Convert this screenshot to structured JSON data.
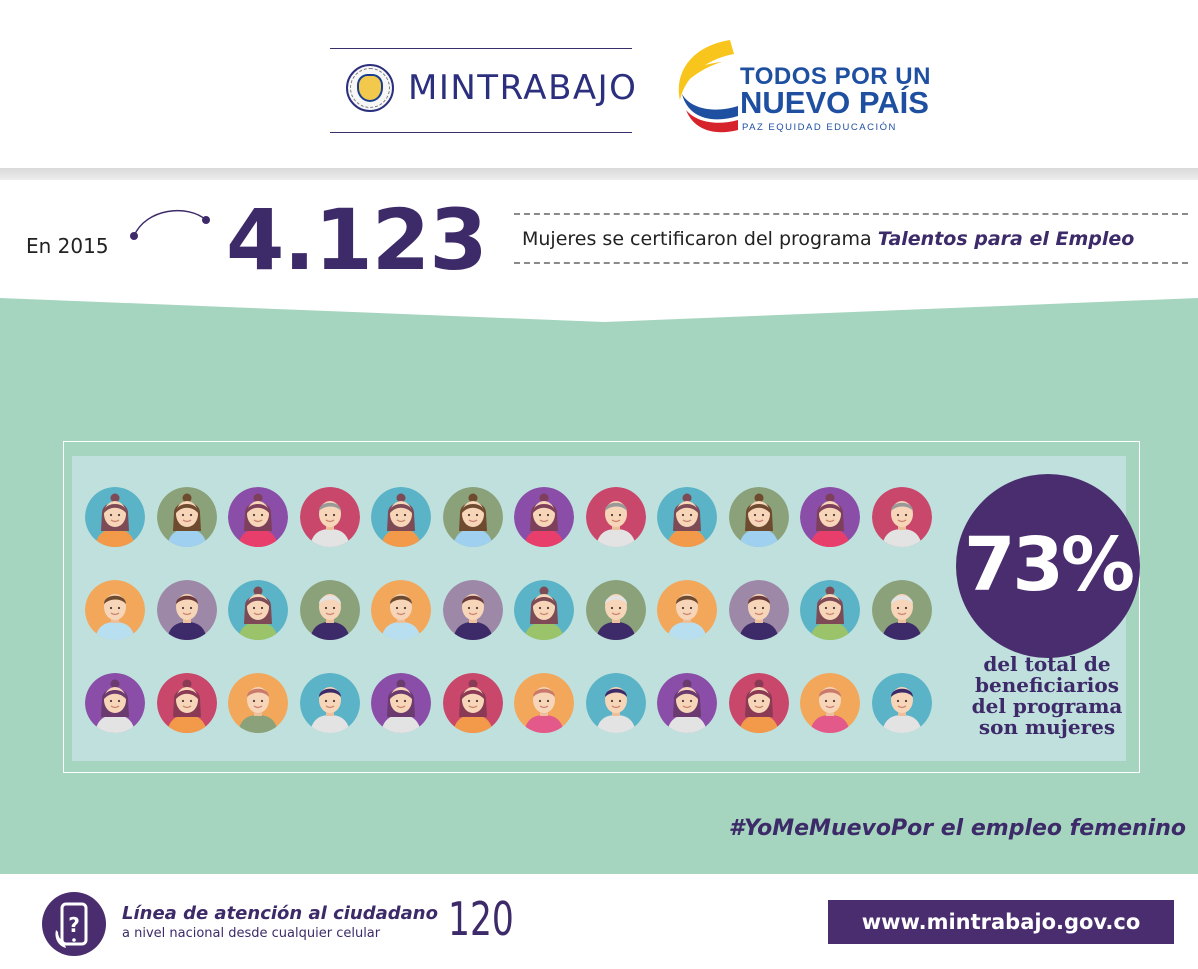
{
  "header": {
    "ministry_logo": {
      "name": "MINTRABAJO",
      "seal_icon": "colombia-coat-of-arms-icon"
    },
    "government_logo": {
      "line1": "TODOS POR UN",
      "line2": "NUEVO PAÍS",
      "line3": "PAZ  EQUIDAD  EDUCACIÓN",
      "mark_icon": "colombia-flag-swoosh-icon"
    }
  },
  "stat": {
    "year_label": "En 2015",
    "number": "4.123",
    "description_prefix": "Mujeres se certificaron del programa ",
    "program_name": "Talentos para el Empleo"
  },
  "infographic": {
    "avatar_icon": "person-avatar-icon",
    "rows": [
      [
        {
          "bg": "#5ab3c6",
          "skin": "#f6d5b8",
          "hair": "#7d4a55",
          "shirt": "#f29a4a",
          "type": "w"
        },
        {
          "bg": "#8aa17a",
          "skin": "#f6d5b8",
          "hair": "#6e4a2f",
          "shirt": "#9fd0f0",
          "type": "w"
        },
        {
          "bg": "#8a4ea8",
          "skin": "#f6d5b8",
          "hair": "#7d3f5a",
          "shirt": "#e83e6c",
          "type": "w"
        },
        {
          "bg": "#c9476b",
          "skin": "#f6d5b8",
          "hair": "#999999",
          "shirt": "#e3e3e3",
          "type": "m"
        },
        {
          "bg": "#5ab3c6",
          "skin": "#f6d5b8",
          "hair": "#7d4a55",
          "shirt": "#f29a4a",
          "type": "w"
        },
        {
          "bg": "#8aa17a",
          "skin": "#f6d5b8",
          "hair": "#6e4a2f",
          "shirt": "#9fd0f0",
          "type": "w"
        },
        {
          "bg": "#8a4ea8",
          "skin": "#f6d5b8",
          "hair": "#7d3f5a",
          "shirt": "#e83e6c",
          "type": "w"
        },
        {
          "bg": "#c9476b",
          "skin": "#f6d5b8",
          "hair": "#999999",
          "shirt": "#e3e3e3",
          "type": "m"
        },
        {
          "bg": "#5ab3c6",
          "skin": "#f6d5b8",
          "hair": "#7d4a55",
          "shirt": "#f29a4a",
          "type": "w"
        },
        {
          "bg": "#8aa17a",
          "skin": "#f6d5b8",
          "hair": "#6e4a2f",
          "shirt": "#9fd0f0",
          "type": "w"
        },
        {
          "bg": "#8a4ea8",
          "skin": "#f6d5b8",
          "hair": "#7d3f5a",
          "shirt": "#e83e6c",
          "type": "w"
        },
        {
          "bg": "#c9476b",
          "skin": "#f6d5b8",
          "hair": "#999999",
          "shirt": "#e3e3e3",
          "type": "m"
        }
      ],
      [
        {
          "bg": "#f2a75b",
          "skin": "#f6d5b8",
          "hair": "#6e4a2f",
          "shirt": "#b8dff0",
          "type": "m"
        },
        {
          "bg": "#9d88a8",
          "skin": "#f6d5b8",
          "hair": "#6b3a3a",
          "shirt": "#3d2a69",
          "type": "m"
        },
        {
          "bg": "#5ab3c6",
          "skin": "#f6d5b8",
          "hair": "#7d4a55",
          "shirt": "#9bc46a",
          "type": "w"
        },
        {
          "bg": "#8aa17a",
          "skin": "#f6d5b8",
          "hair": "#e3e3e3",
          "shirt": "#3d2a69",
          "type": "m"
        },
        {
          "bg": "#f2a75b",
          "skin": "#f6d5b8",
          "hair": "#6e4a2f",
          "shirt": "#b8dff0",
          "type": "m"
        },
        {
          "bg": "#9d88a8",
          "skin": "#f6d5b8",
          "hair": "#6b3a3a",
          "shirt": "#3d2a69",
          "type": "m"
        },
        {
          "bg": "#5ab3c6",
          "skin": "#f6d5b8",
          "hair": "#7d4a55",
          "shirt": "#9bc46a",
          "type": "w"
        },
        {
          "bg": "#8aa17a",
          "skin": "#f6d5b8",
          "hair": "#e3e3e3",
          "shirt": "#3d2a69",
          "type": "m"
        },
        {
          "bg": "#f2a75b",
          "skin": "#f6d5b8",
          "hair": "#6e4a2f",
          "shirt": "#b8dff0",
          "type": "m"
        },
        {
          "bg": "#9d88a8",
          "skin": "#f6d5b8",
          "hair": "#6b3a3a",
          "shirt": "#3d2a69",
          "type": "m"
        },
        {
          "bg": "#5ab3c6",
          "skin": "#f6d5b8",
          "hair": "#7d4a55",
          "shirt": "#9bc46a",
          "type": "w"
        },
        {
          "bg": "#8aa17a",
          "skin": "#f6d5b8",
          "hair": "#e3e3e3",
          "shirt": "#3d2a69",
          "type": "m"
        }
      ],
      [
        {
          "bg": "#8a4ea8",
          "skin": "#f6d5b8",
          "hair": "#6b3a6e",
          "shirt": "#e3e3e3",
          "type": "w"
        },
        {
          "bg": "#c9476b",
          "skin": "#f6d5b8",
          "hair": "#8a3a55",
          "shirt": "#f29a4a",
          "type": "w"
        },
        {
          "bg": "#f2a75b",
          "skin": "#f6d5b8",
          "hair": "#c97a6b",
          "shirt": "#8aa17a",
          "type": "m"
        },
        {
          "bg": "#5ab3c6",
          "skin": "#f6d5b8",
          "hair": "#3d2a69",
          "shirt": "#e3e3e3",
          "type": "m"
        },
        {
          "bg": "#8a4ea8",
          "skin": "#f6d5b8",
          "hair": "#6b3a6e",
          "shirt": "#e3e3e3",
          "type": "w"
        },
        {
          "bg": "#c9476b",
          "skin": "#f6d5b8",
          "hair": "#8a3a55",
          "shirt": "#f29a4a",
          "type": "w"
        },
        {
          "bg": "#f2a75b",
          "skin": "#f6d5b8",
          "hair": "#c97a6b",
          "shirt": "#e35a8a",
          "type": "m"
        },
        {
          "bg": "#5ab3c6",
          "skin": "#f6d5b8",
          "hair": "#3d2a69",
          "shirt": "#e3e3e3",
          "type": "m"
        },
        {
          "bg": "#8a4ea8",
          "skin": "#f6d5b8",
          "hair": "#6b3a6e",
          "shirt": "#e3e3e3",
          "type": "w"
        },
        {
          "bg": "#c9476b",
          "skin": "#f6d5b8",
          "hair": "#8a3a55",
          "shirt": "#f29a4a",
          "type": "w"
        },
        {
          "bg": "#f2a75b",
          "skin": "#f6d5b8",
          "hair": "#c97a6b",
          "shirt": "#e35a8a",
          "type": "m"
        },
        {
          "bg": "#5ab3c6",
          "skin": "#f6d5b8",
          "hair": "#3d2a69",
          "shirt": "#e3e3e3",
          "type": "m"
        }
      ]
    ],
    "percentage": "73%",
    "percentage_description": [
      "del total de",
      "beneficiarios",
      "del programa",
      "son mujeres"
    ],
    "hashtag": "#YoMeMuevoPor el empleo femenino"
  },
  "footer": {
    "phone_icon": "mobile-phone-icon",
    "line1": "Línea de atención al ciudadano",
    "line2": "a nivel nacional desde cualquier celular",
    "number": "120",
    "url": "www.mintrabajo.gov.co"
  },
  "colors": {
    "purple": "#3d2a69",
    "dark_purple": "#4a2d6e",
    "green_background": "#a6d5bf",
    "panel_background": "#bfe0dc",
    "brand_blue": "#1e4fa0"
  }
}
